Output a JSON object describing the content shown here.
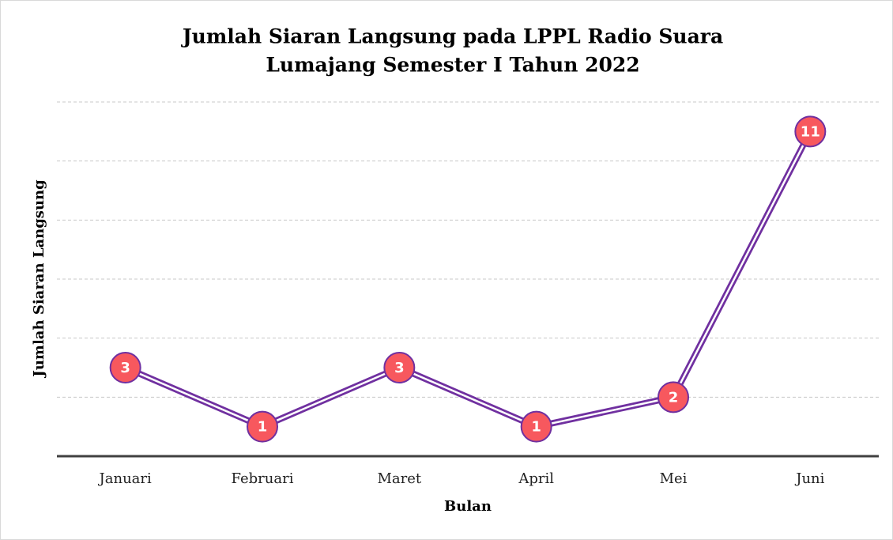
{
  "chart_data": {
    "type": "line",
    "title": [
      "Jumlah Siaran Langsung pada LPPL Radio Suara",
      "Lumajang Semester I Tahun 2022"
    ],
    "x_label": "Bulan",
    "y_label": "Jumlah Siaran Langsung",
    "categories": [
      "Januari",
      "Februari",
      "Maret",
      "April",
      "Mei",
      "Juni"
    ],
    "values": [
      3,
      1,
      3,
      1,
      2,
      11
    ],
    "color": "#7030a0",
    "marker_color": "#f7585e",
    "ylim": [
      0,
      12
    ],
    "yticks": [
      0,
      2,
      4,
      6,
      8,
      10,
      12
    ],
    "grid": true
  }
}
